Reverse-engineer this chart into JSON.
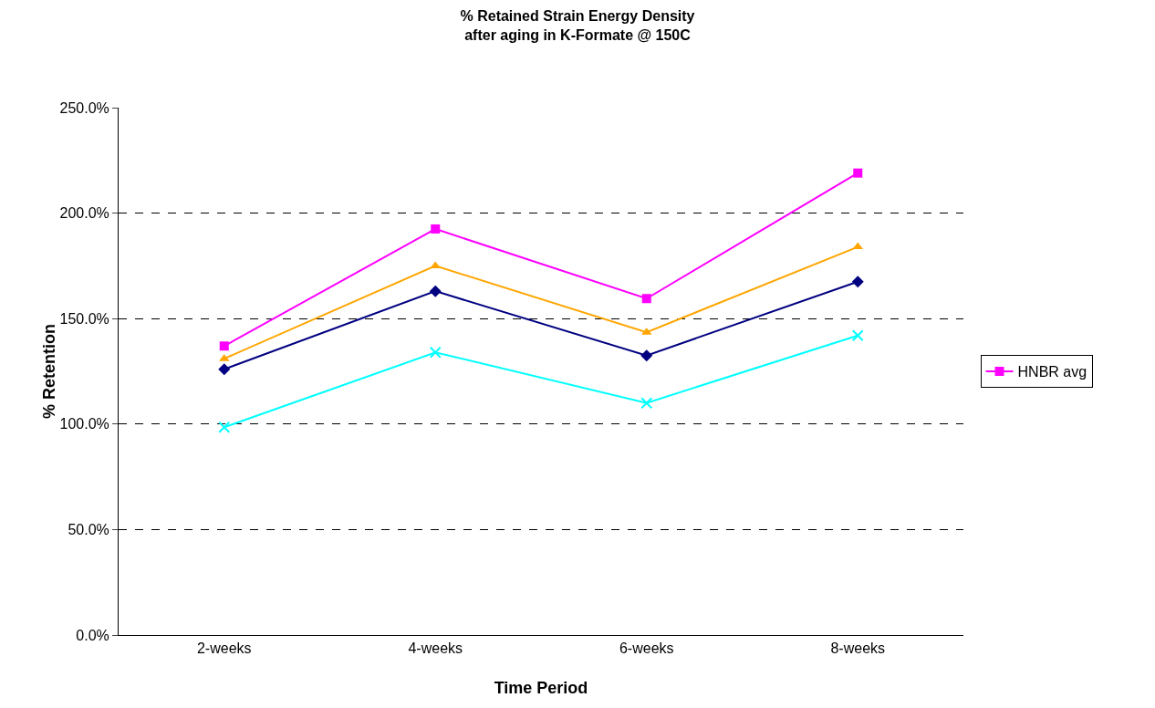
{
  "chart_data": {
    "type": "line",
    "title": "% Retained Strain Energy Density\nafter aging in K-Formate @ 150C",
    "xlabel": "Time Period",
    "ylabel": "% Retention",
    "categories": [
      "2-weeks",
      "4-weeks",
      "6-weeks",
      "8-weeks"
    ],
    "series": [
      {
        "color": "#000080",
        "marker": "diamond",
        "values": [
          126,
          163,
          132.5,
          167.5
        ]
      },
      {
        "color": "#00ffff",
        "marker": "cross",
        "values": [
          98.5,
          134,
          110,
          142
        ]
      },
      {
        "name": "HNBR avg",
        "color": "#ff00ff",
        "marker": "square",
        "values": [
          137,
          192.5,
          159.5,
          219
        ]
      },
      {
        "color": "#ffa500",
        "marker": "triangle",
        "values": [
          131,
          175,
          143.5,
          184
        ]
      }
    ],
    "ylim": [
      0,
      250
    ],
    "yticks": [
      {
        "value": 0,
        "label": "0.0%"
      },
      {
        "value": 50,
        "label": "50.0%"
      },
      {
        "value": 100,
        "label": "100.0%"
      },
      {
        "value": 150,
        "label": "150.0%"
      },
      {
        "value": 200,
        "label": "200.0%"
      },
      {
        "value": 250,
        "label": "250.0%"
      }
    ],
    "grid": "y",
    "legend": "right",
    "line_style": "solid"
  }
}
